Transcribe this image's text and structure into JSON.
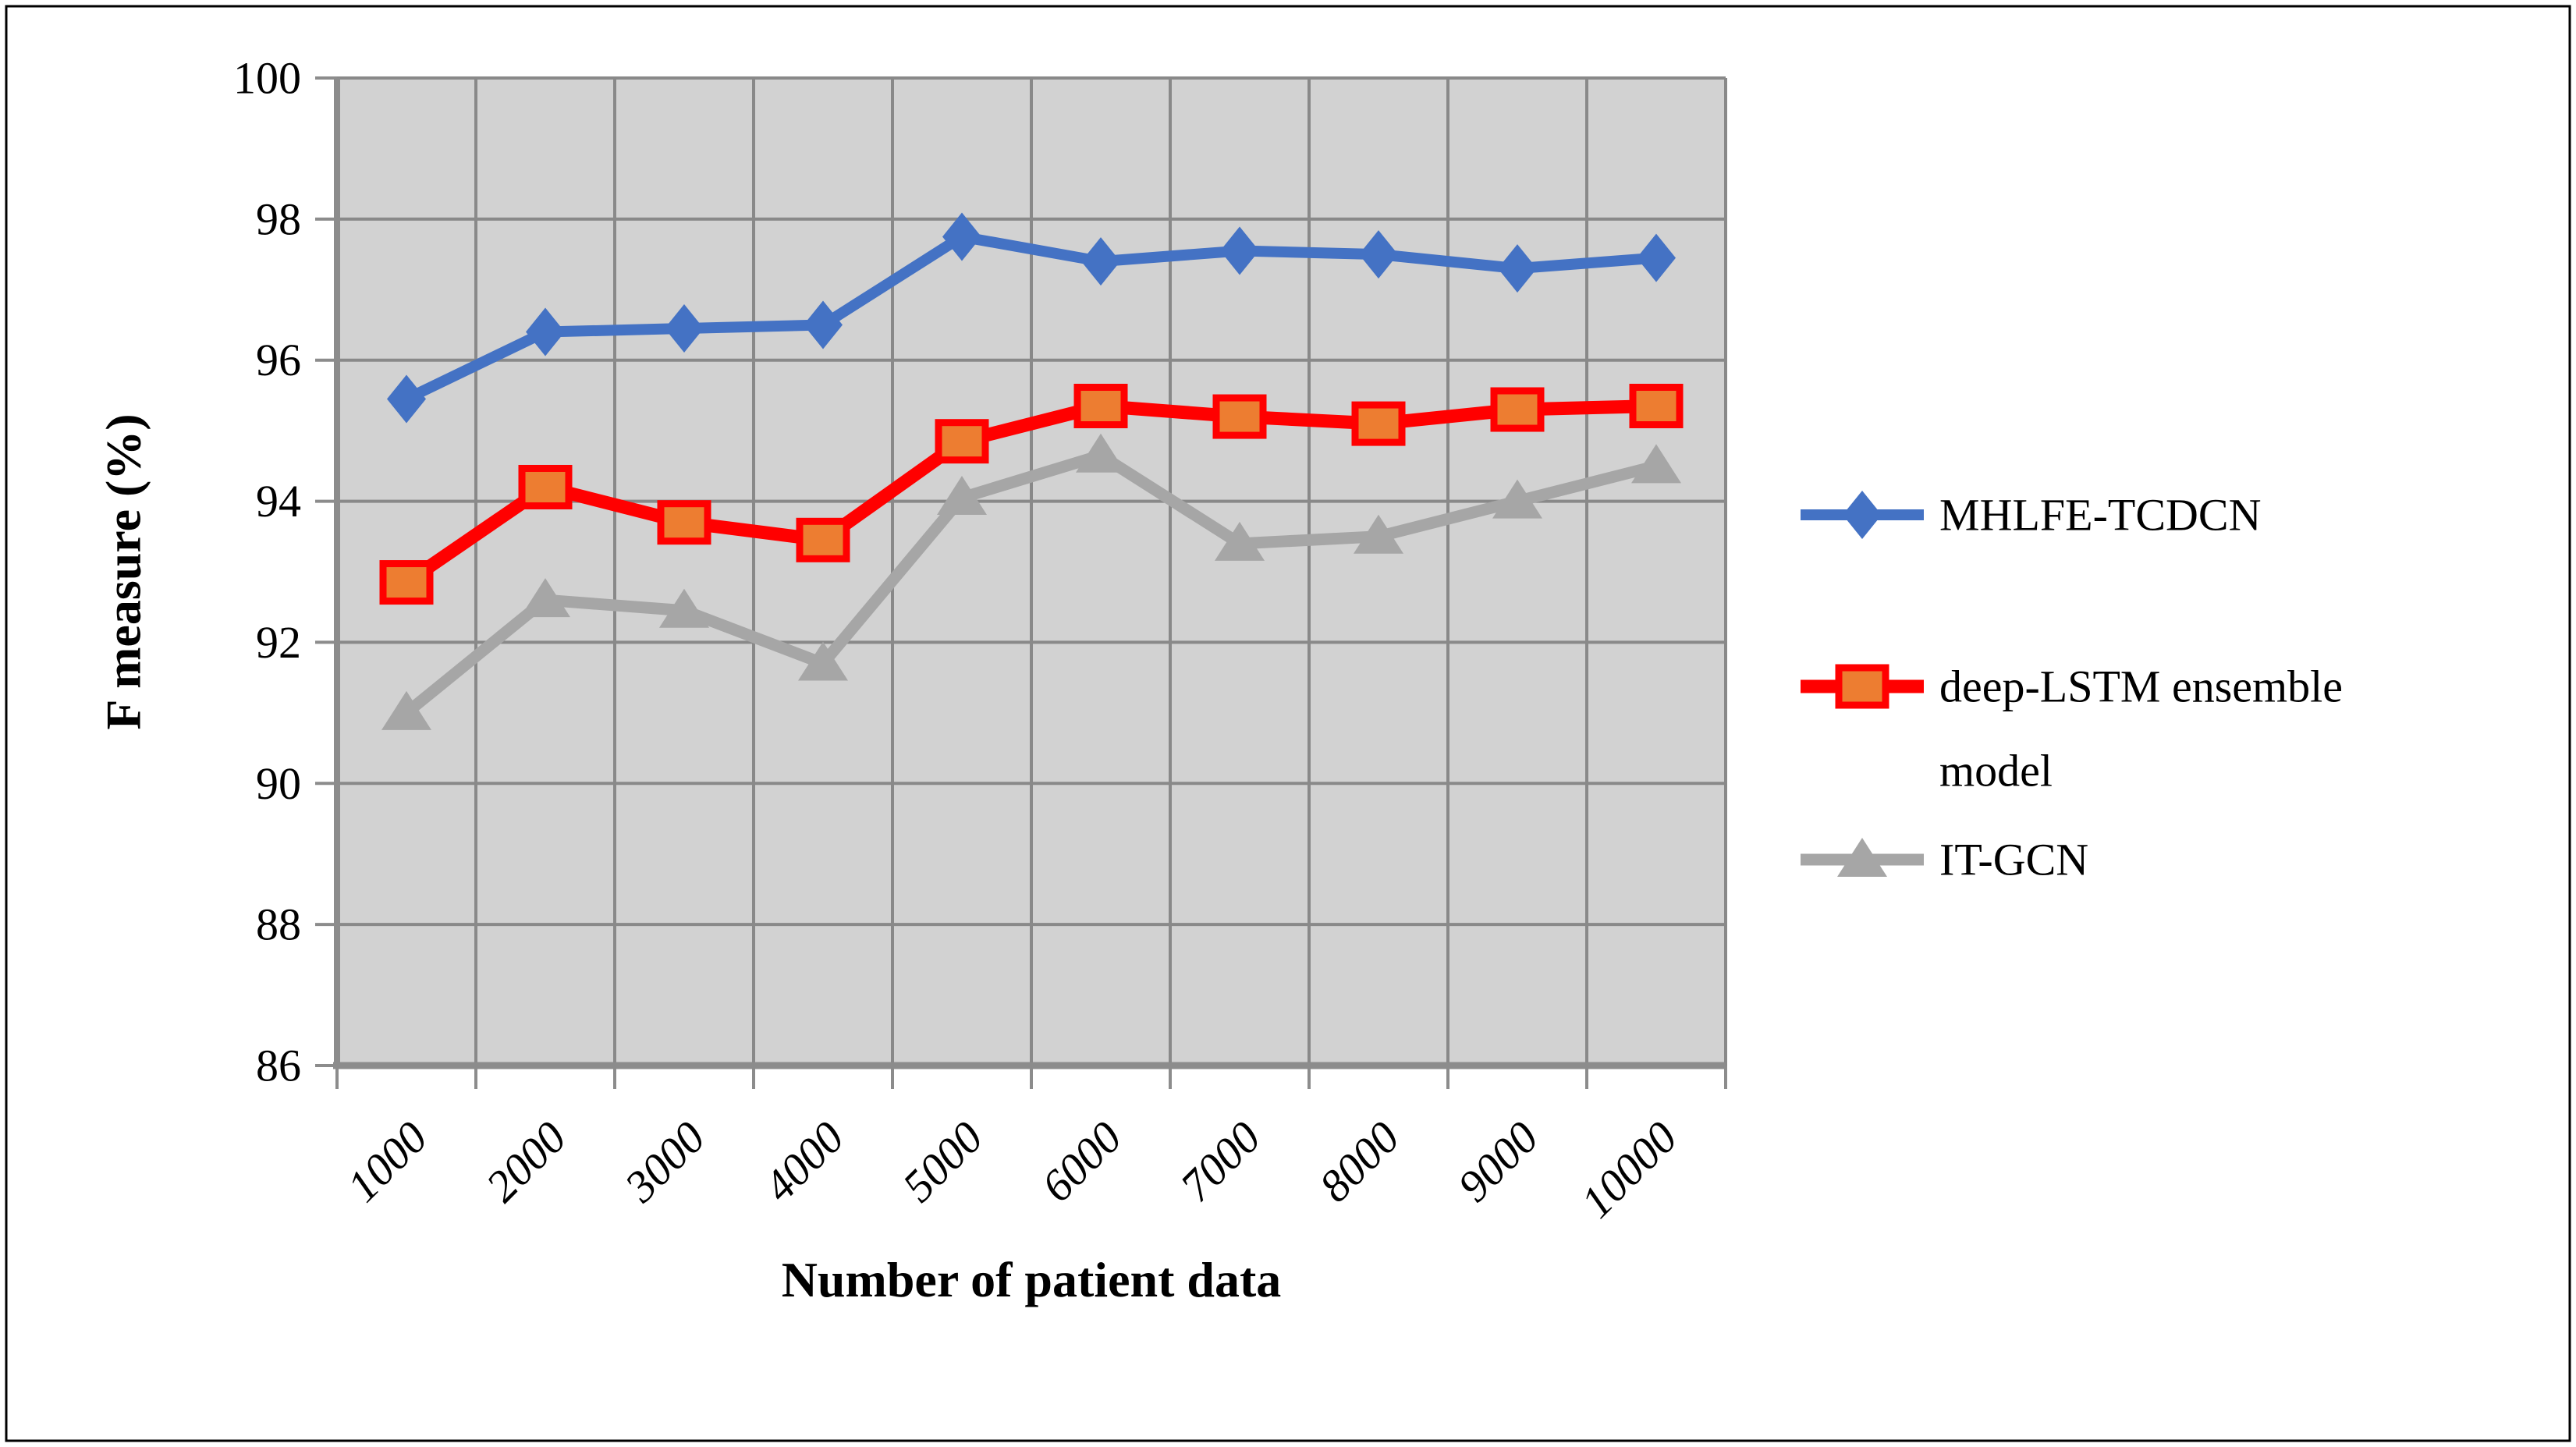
{
  "figure": {
    "background": "#FFFFFF",
    "border_color": "#000000"
  },
  "chart_data": {
    "type": "line",
    "title": "",
    "xlabel": "Number of patient data",
    "ylabel": "F measure (%)",
    "categories": [
      "1000",
      "2000",
      "3000",
      "4000",
      "5000",
      "6000",
      "7000",
      "8000",
      "9000",
      "10000"
    ],
    "series": [
      {
        "name": "MHLFE-TCDCN",
        "legend_lines": [
          "MHLFE-TCDCN"
        ],
        "color": "#4472C4",
        "marker": "diamond",
        "marker_fill": "#4472C4",
        "line_width": 14,
        "values": [
          95.45,
          96.4,
          96.45,
          96.5,
          97.75,
          97.4,
          97.55,
          97.5,
          97.3,
          97.45
        ]
      },
      {
        "name": "deep-LSTM ensemble model",
        "legend_lines": [
          "deep-LSTM ensemble",
          "model"
        ],
        "color": "#FF0000",
        "marker": "square",
        "marker_fill": "#ED7D31",
        "line_width": 17,
        "values": [
          92.85,
          94.2,
          93.7,
          93.45,
          94.85,
          95.35,
          95.2,
          95.1,
          95.3,
          95.35
        ]
      },
      {
        "name": "IT-GCN",
        "legend_lines": [
          "IT-GCN"
        ],
        "color": "#A6A6A6",
        "marker": "triangle",
        "marker_fill": "#A6A6A6",
        "line_width": 15,
        "values": [
          91.0,
          92.6,
          92.45,
          91.7,
          94.05,
          94.65,
          93.4,
          93.5,
          94.0,
          94.5
        ]
      }
    ],
    "ylim": [
      86,
      100
    ],
    "ytick_step": 2,
    "yticks": [
      "86",
      "88",
      "90",
      "92",
      "94",
      "96",
      "98",
      "100"
    ],
    "grid": true,
    "legend_position": "right",
    "plot_bg": "#D2D2D2",
    "grid_color": "#898989",
    "axis_color": "#8C8C8C",
    "tick_color": "#8C8C8C",
    "text_color": "#000000"
  }
}
